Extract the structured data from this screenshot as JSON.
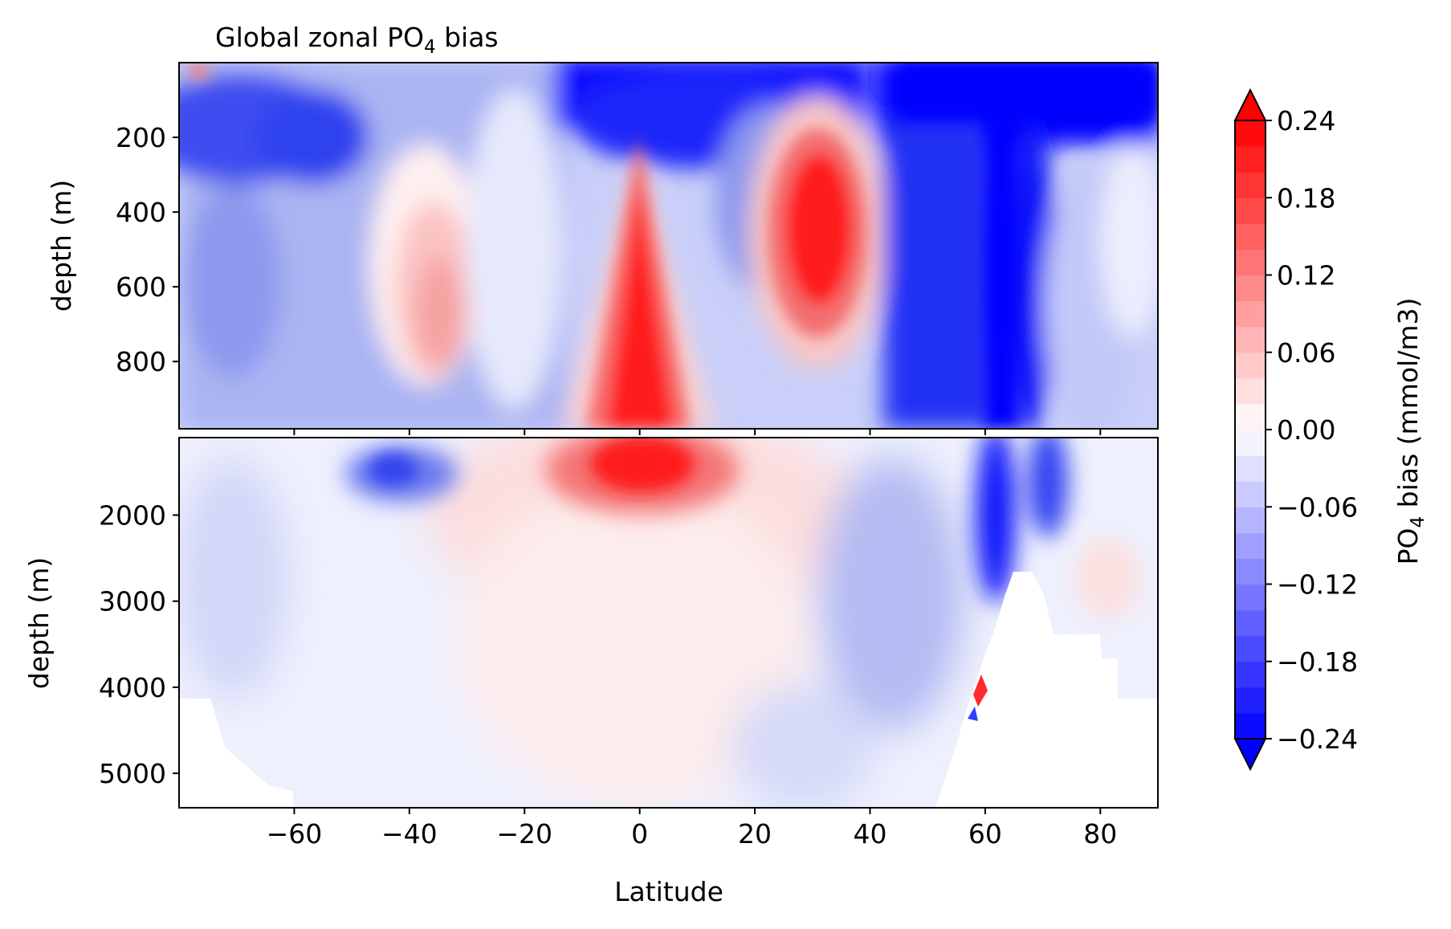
{
  "chart_data": {
    "type": "heatmap",
    "title_text": "Global zonal PO",
    "title_sub": "4",
    "title_suffix": " bias",
    "xlabel": "Latitude",
    "xlim": [
      -80,
      90
    ],
    "xticks": [
      -60,
      -40,
      -20,
      0,
      20,
      40,
      60,
      80
    ],
    "xtick_labels": [
      "−60",
      "−40",
      "−20",
      "0",
      "20",
      "40",
      "60",
      "80"
    ],
    "panels": [
      {
        "name": "upper",
        "ylabel": "depth (m)",
        "ylim": [
          0,
          980
        ],
        "inverted": true,
        "yticks": [
          200,
          400,
          600,
          800
        ],
        "ytick_labels": [
          "200",
          "400",
          "600",
          "800"
        ]
      },
      {
        "name": "lower",
        "ylabel": "depth (m)",
        "ylim": [
          1100,
          5400
        ],
        "inverted": true,
        "yticks": [
          2000,
          3000,
          4000,
          5000
        ],
        "ytick_labels": [
          "2000",
          "3000",
          "4000",
          "5000"
        ]
      }
    ],
    "colorbar": {
      "label_text": "PO",
      "label_sub": "4",
      "label_suffix": " bias (mmol/m3)",
      "min": -0.24,
      "max": 0.24,
      "extend": "both",
      "ticks": [
        -0.24,
        -0.18,
        -0.12,
        -0.06,
        0.0,
        0.06,
        0.12,
        0.18,
        0.24
      ],
      "tick_labels": [
        "−0.24",
        "−0.18",
        "−0.12",
        "−0.06",
        "0.00",
        "0.06",
        "0.12",
        "0.18",
        "0.24"
      ],
      "cmap": "bwr",
      "low_color": "#0000ff",
      "mid_color": "#ffffff",
      "high_color": "#ff0000"
    },
    "features": [
      {
        "name": "equatorial-positive-core",
        "lat": 0,
        "depth_range": [
          250,
          2200
        ],
        "value": 0.24
      },
      {
        "name": "subtropical-north-positive-lens",
        "lat": 31,
        "depth_range": [
          150,
          800
        ],
        "value": 0.24
      },
      {
        "name": "southern-intermediate-positive",
        "lat": -36,
        "depth_range": [
          300,
          900
        ],
        "value": 0.08
      },
      {
        "name": "southern-ocean-shallow-negative",
        "lat": -65,
        "depth_range": [
          50,
          300
        ],
        "value": -0.2
      },
      {
        "name": "northern-surface-negative",
        "lat_range": [
          10,
          90
        ],
        "depth_range": [
          0,
          200
        ],
        "value": -0.24
      },
      {
        "name": "north-atlantic-deep-negative",
        "lat_range": [
          42,
          75
        ],
        "depth_range": [
          0,
          2500
        ],
        "value": -0.24
      },
      {
        "name": "deep-positive-band",
        "lat_range": [
          -30,
          30
        ],
        "depth_range": [
          1300,
          4500
        ],
        "value": 0.04
      }
    ]
  }
}
